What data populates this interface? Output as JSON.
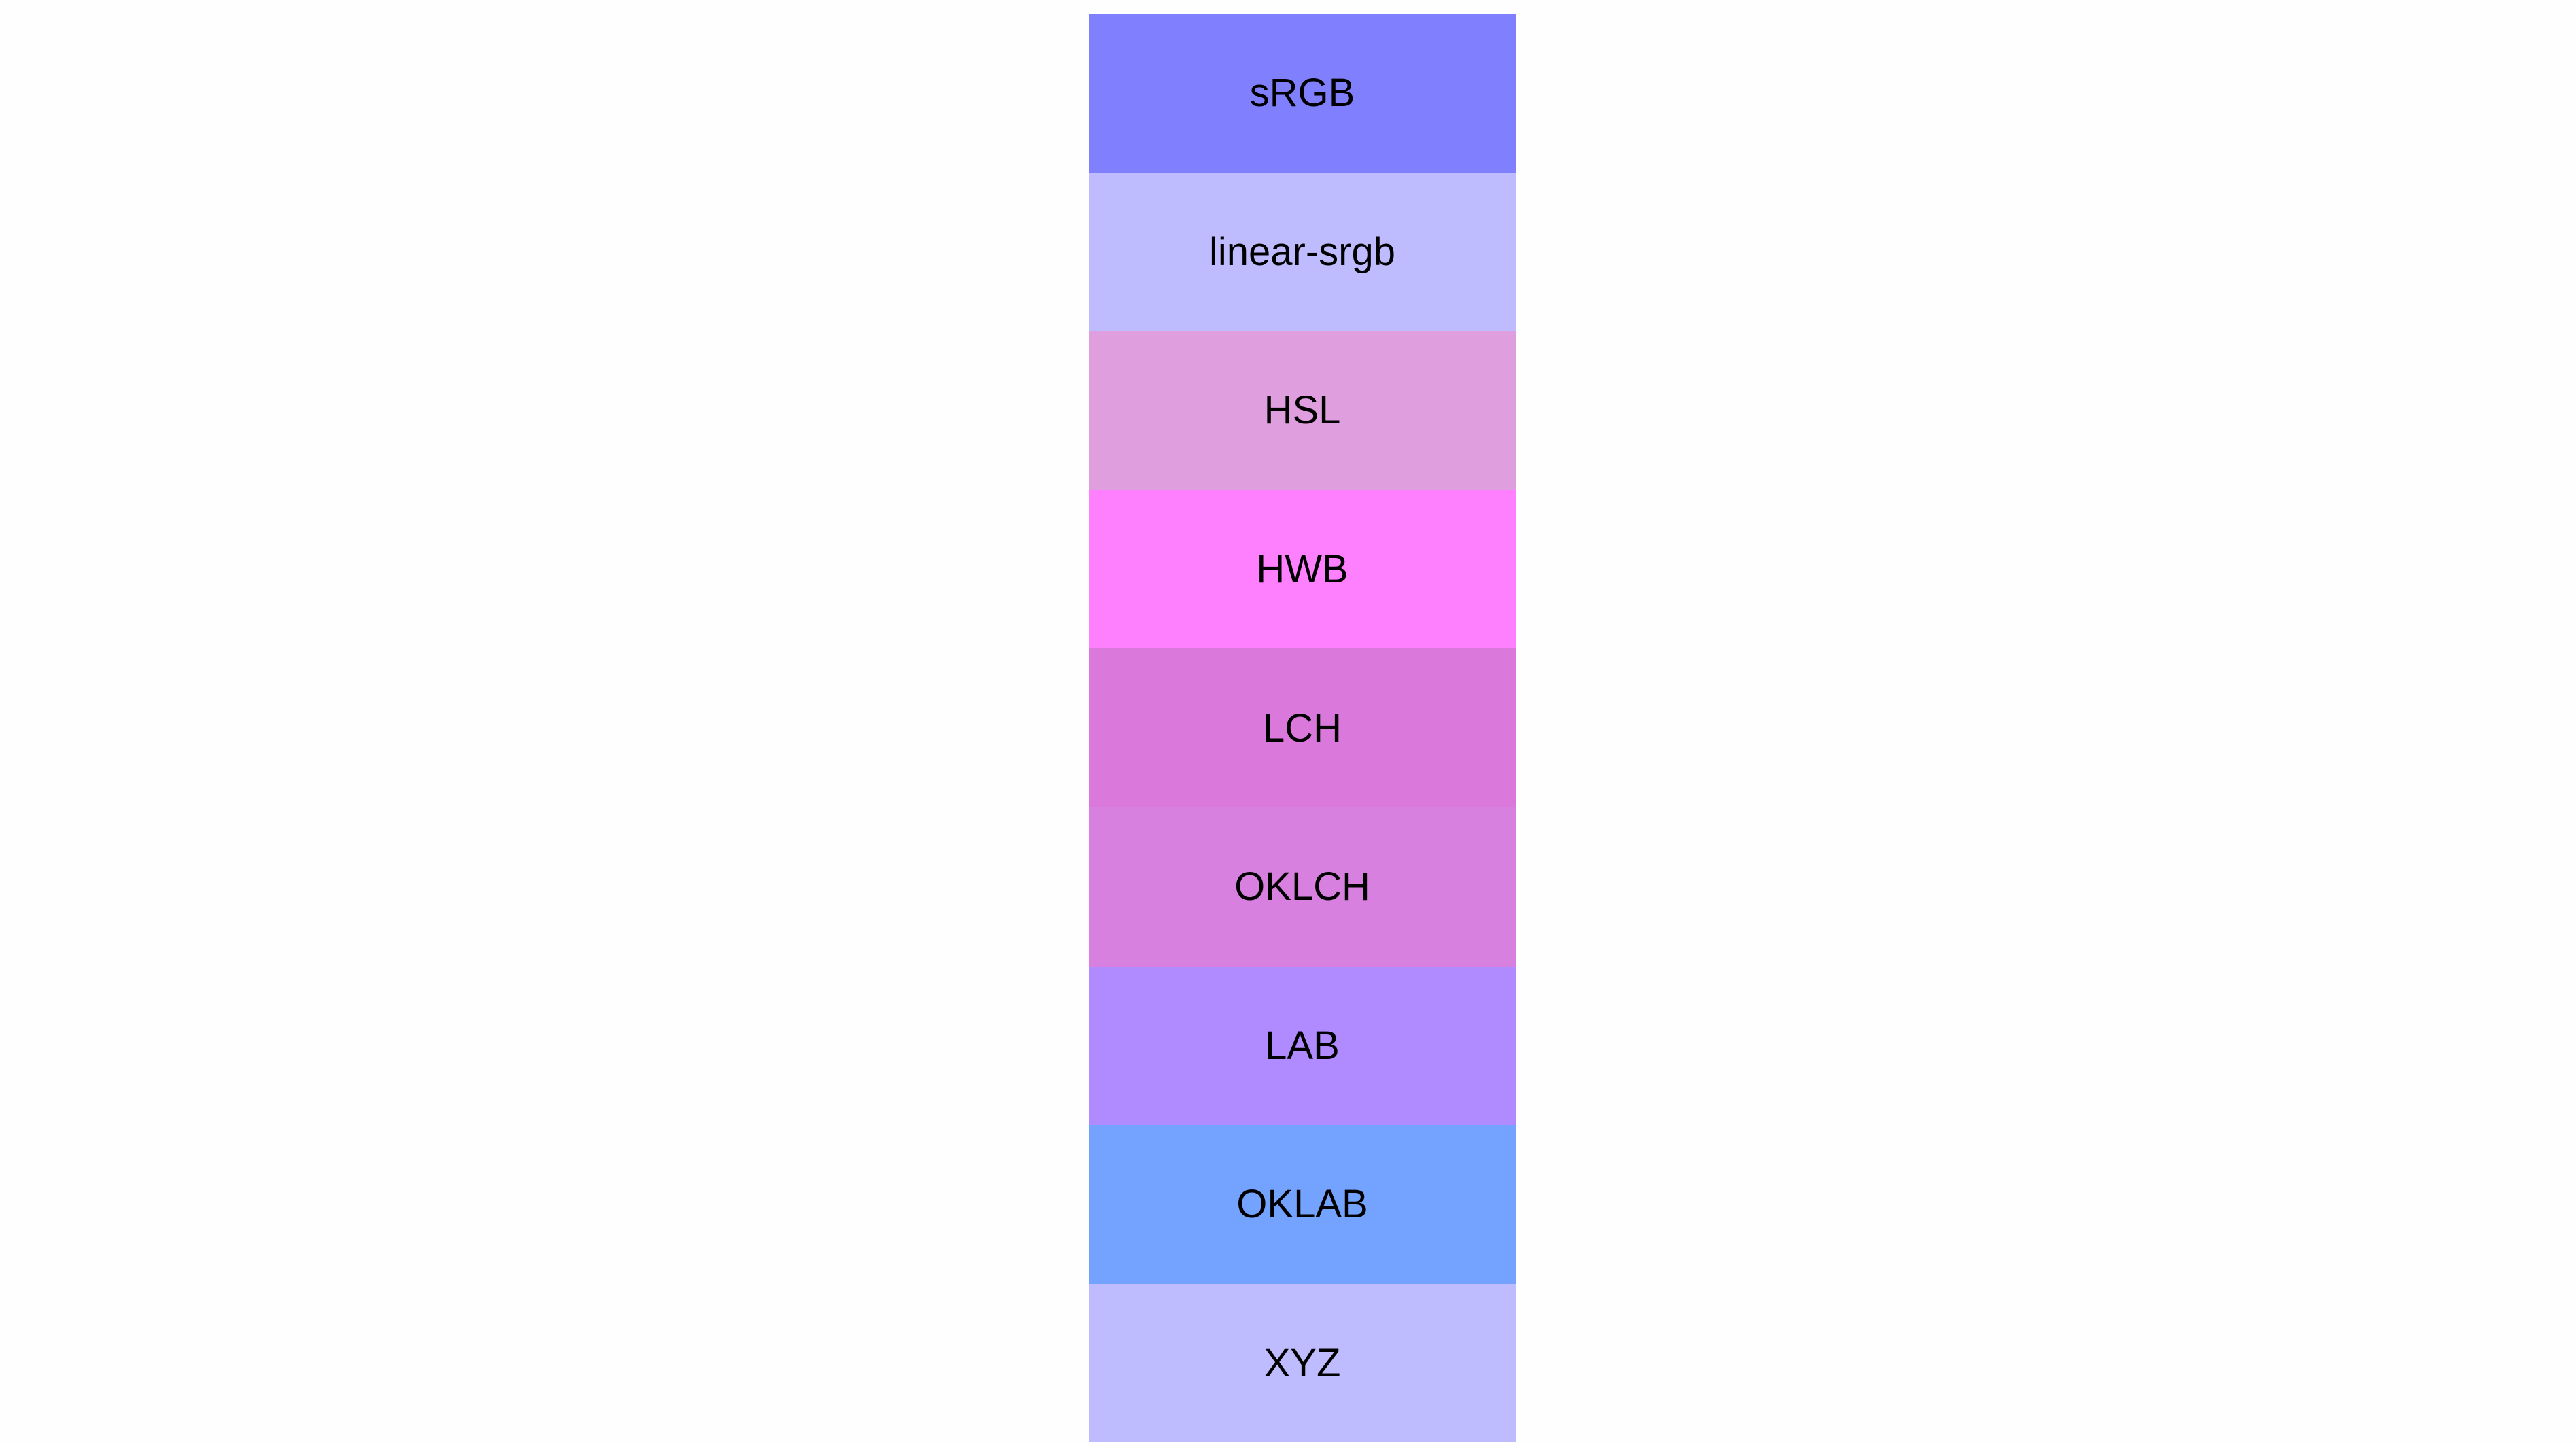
{
  "swatches": [
    {
      "label": "sRGB",
      "color": "#8080ff"
    },
    {
      "label": "linear-srgb",
      "color": "#bebcfe"
    },
    {
      "label": "HSL",
      "color": "#df9fdf"
    },
    {
      "label": "HWB",
      "color": "#ff80ff"
    },
    {
      "label": "LCH",
      "color": "#db78db"
    },
    {
      "label": "OKLCH",
      "color": "#d880e0"
    },
    {
      "label": "LAB",
      "color": "#af8bff"
    },
    {
      "label": "OKLAB",
      "color": "#73a2ff"
    },
    {
      "label": "XYZ",
      "color": "#bebcfe"
    }
  ]
}
